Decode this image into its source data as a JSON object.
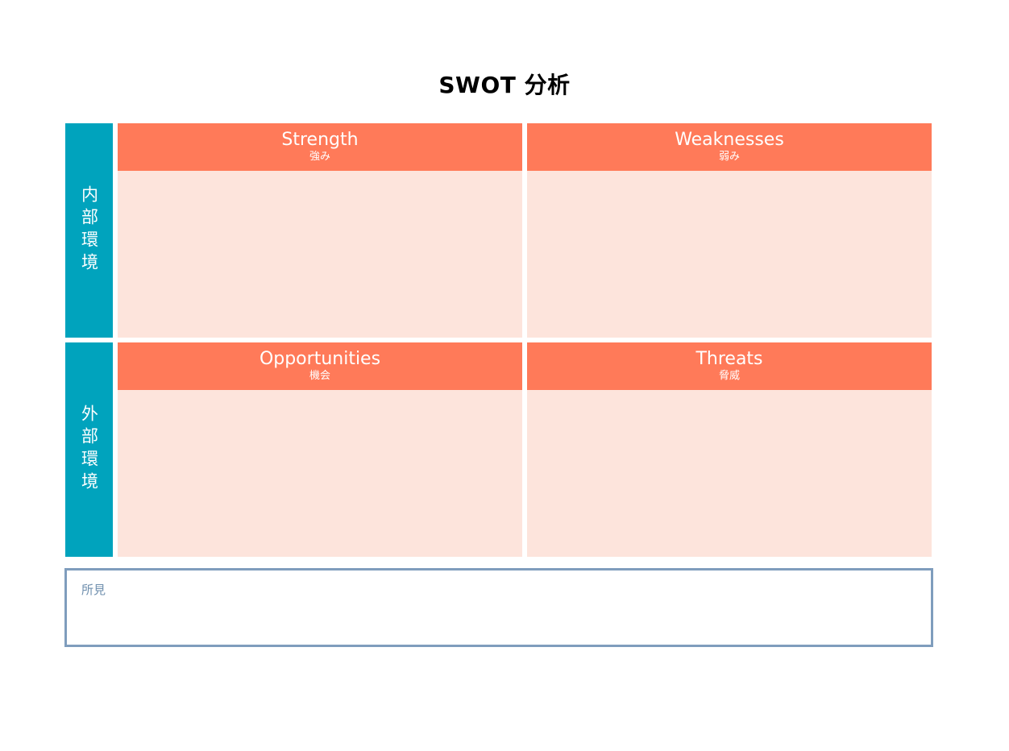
{
  "title": "SWOT 分析",
  "colors": {
    "side_band": "#00a3bd",
    "header": "#ff7a59",
    "cell_body": "#fde4dc",
    "notes_border": "#7f9dbd",
    "notes_label": "#6f8fae"
  },
  "rows": {
    "internal_label": "内部環境",
    "external_label": "外部環境"
  },
  "quadrants": {
    "strength": {
      "en": "Strength",
      "ja": "強み"
    },
    "weaknesses": {
      "en": "Weaknesses",
      "ja": "弱み"
    },
    "opportunities": {
      "en": "Opportunities",
      "ja": "機会"
    },
    "threats": {
      "en": "Threats",
      "ja": "脅威"
    }
  },
  "notes": {
    "label": "所見"
  }
}
